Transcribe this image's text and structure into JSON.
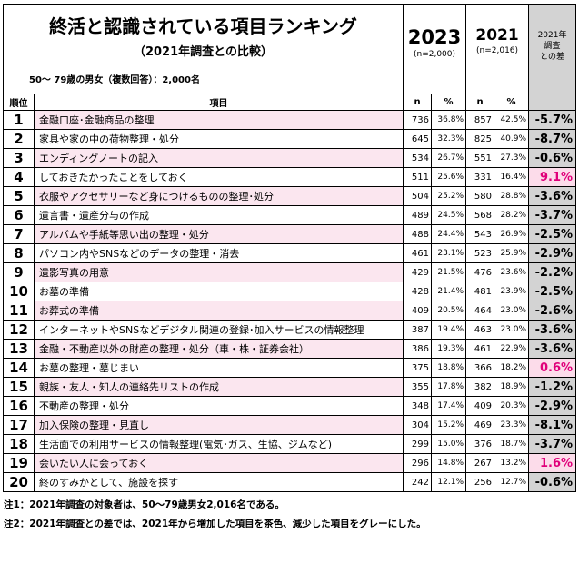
{
  "header": {
    "title": "終活と認識されている項目ランキング",
    "subtitle": "（2021年調査との比較）",
    "sample": "50～ 79歳の男女（複数回答）：2,000名",
    "year_2023": "2023",
    "n_2023": "(n=2,000)",
    "year_2021": "2021",
    "n_2021": "(n=2,016)",
    "diff_header": [
      "2021年",
      "調査",
      "との差"
    ]
  },
  "columns": {
    "rank": "順位",
    "item": "項目",
    "n": "n",
    "pct": "%"
  },
  "rows": [
    {
      "rank": "1",
      "item": "金融口座･金融商品の整理",
      "n23": "736",
      "p23": "36.8%",
      "n21": "857",
      "p21": "42.5%",
      "diff": "-5.7%",
      "up": false
    },
    {
      "rank": "2",
      "item": "家具や家の中の荷物整理・処分",
      "n23": "645",
      "p23": "32.3%",
      "n21": "825",
      "p21": "40.9%",
      "diff": "-8.7%",
      "up": false
    },
    {
      "rank": "3",
      "item": "エンディングノートの記入",
      "n23": "534",
      "p23": "26.7%",
      "n21": "551",
      "p21": "27.3%",
      "diff": "-0.6%",
      "up": false
    },
    {
      "rank": "4",
      "item": "しておきたかったことをしておく",
      "n23": "511",
      "p23": "25.6%",
      "n21": "331",
      "p21": "16.4%",
      "diff": "9.1%",
      "up": true
    },
    {
      "rank": "5",
      "item": "衣服やアクセサリーなど身につけるものの整理･処分",
      "n23": "504",
      "p23": "25.2%",
      "n21": "580",
      "p21": "28.8%",
      "diff": "-3.6%",
      "up": false
    },
    {
      "rank": "6",
      "item": "遺言書・遺産分与の作成",
      "n23": "489",
      "p23": "24.5%",
      "n21": "568",
      "p21": "28.2%",
      "diff": "-3.7%",
      "up": false
    },
    {
      "rank": "7",
      "item": "アルバムや手紙等思い出の整理・処分",
      "n23": "488",
      "p23": "24.4%",
      "n21": "543",
      "p21": "26.9%",
      "diff": "-2.5%",
      "up": false
    },
    {
      "rank": "8",
      "item": "パソコン内やSNSなどのデータの整理・消去",
      "n23": "461",
      "p23": "23.1%",
      "n21": "523",
      "p21": "25.9%",
      "diff": "-2.9%",
      "up": false
    },
    {
      "rank": "9",
      "item": "遺影写真の用意",
      "n23": "429",
      "p23": "21.5%",
      "n21": "476",
      "p21": "23.6%",
      "diff": "-2.2%",
      "up": false
    },
    {
      "rank": "10",
      "item": "お墓の準備",
      "n23": "428",
      "p23": "21.4%",
      "n21": "481",
      "p21": "23.9%",
      "diff": "-2.5%",
      "up": false
    },
    {
      "rank": "11",
      "item": "お葬式の準備",
      "n23": "409",
      "p23": "20.5%",
      "n21": "464",
      "p21": "23.0%",
      "diff": "-2.6%",
      "up": false
    },
    {
      "rank": "12",
      "item": "インターネットやSNSなどデジタル関連の登録･加入サービスの情報整理",
      "n23": "387",
      "p23": "19.4%",
      "n21": "463",
      "p21": "23.0%",
      "diff": "-3.6%",
      "up": false
    },
    {
      "rank": "13",
      "item": "金融・不動産以外の財産の整理・処分（車・株・証券会社）",
      "n23": "386",
      "p23": "19.3%",
      "n21": "461",
      "p21": "22.9%",
      "diff": "-3.6%",
      "up": false
    },
    {
      "rank": "14",
      "item": "お墓の整理・墓じまい",
      "n23": "375",
      "p23": "18.8%",
      "n21": "366",
      "p21": "18.2%",
      "diff": "0.6%",
      "up": true
    },
    {
      "rank": "15",
      "item": "親族・友人・知人の連絡先リストの作成",
      "n23": "355",
      "p23": "17.8%",
      "n21": "382",
      "p21": "18.9%",
      "diff": "-1.2%",
      "up": false
    },
    {
      "rank": "16",
      "item": "不動産の整理・処分",
      "n23": "348",
      "p23": "17.4%",
      "n21": "409",
      "p21": "20.3%",
      "diff": "-2.9%",
      "up": false
    },
    {
      "rank": "17",
      "item": "加入保険の整理・見直し",
      "n23": "304",
      "p23": "15.2%",
      "n21": "469",
      "p21": "23.3%",
      "diff": "-8.1%",
      "up": false
    },
    {
      "rank": "18",
      "item": "生活面での利用サービスの情報整理(電気･ガス、生協、ジムなど)",
      "n23": "299",
      "p23": "15.0%",
      "n21": "376",
      "p21": "18.7%",
      "diff": "-3.7%",
      "up": false
    },
    {
      "rank": "19",
      "item": "会いたい人に会っておく",
      "n23": "296",
      "p23": "14.8%",
      "n21": "267",
      "p21": "13.2%",
      "diff": "1.6%",
      "up": true
    },
    {
      "rank": "20",
      "item": "終のすみかとして、施設を探す",
      "n23": "242",
      "p23": "12.1%",
      "n21": "256",
      "p21": "12.7%",
      "diff": "-0.6%",
      "up": false
    }
  ],
  "notes": [
    "注1：2021年調査の対象者は、50～79歳男女2,016名である。",
    "注2：2021年調査との差では、2021年から増加した項目を茶色、減少した項目をグレーにした。"
  ],
  "colors": {
    "increase_text": "#e0007a",
    "increase_bg": "#fcdcea",
    "decrease_bg": "#d3d3d3",
    "row_tint": "#fbe6ef"
  }
}
